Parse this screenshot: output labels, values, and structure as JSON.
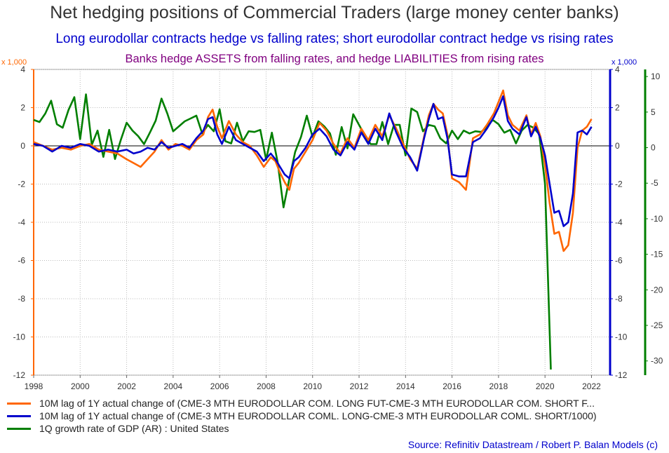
{
  "titles": {
    "main": "Net hedging positions of Commercial Traders (large money center banks)",
    "subtitle": "Long eurodollar contracts hedge vs falling rates; short eurodollar contract hedge vs rising rates",
    "subtitle2": "Banks hedge ASSETS from falling rates, and hedge LIABILITIES from rising rates"
  },
  "source": "Source: Refinitiv Datastream / Robert P. Balan Models (c)",
  "colors": {
    "orange": "#ff6600",
    "blue": "#0000cc",
    "green": "#007f00",
    "title": "#333333",
    "subtitle3": "#800080"
  },
  "chart_data": {
    "type": "line",
    "x_axis": {
      "range": [
        1998,
        2022.8
      ],
      "ticks": [
        "1998",
        "2000",
        "2002",
        "2004",
        "2006",
        "2008",
        "2010",
        "2012",
        "2014",
        "2016",
        "2018",
        "2020",
        "2022"
      ]
    },
    "y_left": {
      "unit": "x 1,000",
      "range": [
        -12,
        4
      ],
      "ticks": [
        "4",
        "2",
        "0",
        "-2",
        "-4",
        "-6",
        "-8",
        "-10",
        "-12"
      ],
      "color": "#ff6600"
    },
    "y_mid": {
      "unit": "x 1,000",
      "range": [
        -12,
        4
      ],
      "ticks": [
        "4",
        "2",
        "0",
        "-2",
        "-4",
        "-6",
        "-8",
        "-10",
        "-12"
      ],
      "color": "#0000cc"
    },
    "y_right": {
      "range": [
        -32,
        11
      ],
      "ticks": [
        "10",
        "5",
        "0",
        "-5",
        "-10",
        "-15",
        "-20",
        "-25",
        "-30"
      ],
      "color": "#007f00"
    },
    "grid": true,
    "legend_position": "bottom",
    "series": [
      {
        "name": "10M lag of 1Y actual change of (CME-3 MTH EURODOLLAR COM. LONG FUT-CME-3 MTH EURODOLLAR COM. SHORT F...",
        "axis": "left",
        "color": "#ff6600",
        "points": [
          [
            1998.0,
            0.2
          ],
          [
            1998.4,
            0.0
          ],
          [
            1998.8,
            -0.2
          ],
          [
            1999.2,
            -0.1
          ],
          [
            1999.6,
            -0.2
          ],
          [
            2000.0,
            0.0
          ],
          [
            2000.4,
            0.1
          ],
          [
            2000.8,
            -0.2
          ],
          [
            2001.2,
            -0.3
          ],
          [
            2001.6,
            -0.4
          ],
          [
            2002.0,
            -0.7
          ],
          [
            2002.3,
            -0.9
          ],
          [
            2002.6,
            -1.1
          ],
          [
            2002.9,
            -0.7
          ],
          [
            2003.2,
            -0.3
          ],
          [
            2003.5,
            0.3
          ],
          [
            2003.8,
            -0.2
          ],
          [
            2004.1,
            0.1
          ],
          [
            2004.4,
            0.0
          ],
          [
            2004.7,
            -0.2
          ],
          [
            2005.0,
            0.3
          ],
          [
            2005.3,
            0.6
          ],
          [
            2005.5,
            1.5
          ],
          [
            2005.7,
            1.9
          ],
          [
            2005.9,
            1.0
          ],
          [
            2006.1,
            0.4
          ],
          [
            2006.4,
            1.3
          ],
          [
            2006.7,
            0.6
          ],
          [
            2007.0,
            0.2
          ],
          [
            2007.3,
            0.0
          ],
          [
            2007.6,
            -0.5
          ],
          [
            2007.9,
            -1.1
          ],
          [
            2008.2,
            -0.6
          ],
          [
            2008.4,
            -0.8
          ],
          [
            2008.6,
            -1.4
          ],
          [
            2008.8,
            -1.9
          ],
          [
            2009.0,
            -2.3
          ],
          [
            2009.2,
            -1.2
          ],
          [
            2009.4,
            -0.9
          ],
          [
            2009.7,
            -0.3
          ],
          [
            2010.0,
            0.3
          ],
          [
            2010.3,
            1.2
          ],
          [
            2010.6,
            0.8
          ],
          [
            2010.9,
            0.1
          ],
          [
            2011.2,
            -0.4
          ],
          [
            2011.5,
            0.4
          ],
          [
            2011.8,
            -0.1
          ],
          [
            2012.1,
            0.9
          ],
          [
            2012.4,
            0.3
          ],
          [
            2012.7,
            1.1
          ],
          [
            2013.0,
            0.5
          ],
          [
            2013.3,
            1.6
          ],
          [
            2013.6,
            0.9
          ],
          [
            2013.9,
            0.1
          ],
          [
            2014.2,
            -0.7
          ],
          [
            2014.5,
            -1.2
          ],
          [
            2014.8,
            0.5
          ],
          [
            2015.0,
            1.6
          ],
          [
            2015.2,
            2.2
          ],
          [
            2015.4,
            1.9
          ],
          [
            2015.6,
            1.7
          ],
          [
            2015.8,
            0.6
          ],
          [
            2016.0,
            -1.7
          ],
          [
            2016.3,
            -1.9
          ],
          [
            2016.6,
            -2.3
          ],
          [
            2016.9,
            0.4
          ],
          [
            2017.2,
            0.6
          ],
          [
            2017.5,
            1.1
          ],
          [
            2017.8,
            1.7
          ],
          [
            2018.0,
            2.3
          ],
          [
            2018.2,
            2.9
          ],
          [
            2018.4,
            1.6
          ],
          [
            2018.6,
            1.1
          ],
          [
            2018.9,
            0.8
          ],
          [
            2019.2,
            1.6
          ],
          [
            2019.4,
            0.6
          ],
          [
            2019.6,
            1.2
          ],
          [
            2019.8,
            0.5
          ],
          [
            2020.0,
            -1.0
          ],
          [
            2020.2,
            -3.0
          ],
          [
            2020.4,
            -4.6
          ],
          [
            2020.6,
            -4.5
          ],
          [
            2020.8,
            -5.5
          ],
          [
            2021.0,
            -5.2
          ],
          [
            2021.2,
            -3.5
          ],
          [
            2021.4,
            -0.1
          ],
          [
            2021.6,
            0.8
          ],
          [
            2021.8,
            1.0
          ],
          [
            2022.0,
            1.4
          ]
        ]
      },
      {
        "name": "10M lag of 1Y actual change of (CME-3 MTH EURODOLLAR COML. LONG-CME-3 MTH EURODOLLAR COML. SHORT/1000)",
        "axis": "mid",
        "color": "#0000cc",
        "points": [
          [
            1998.0,
            0.1
          ],
          [
            1998.4,
            0.0
          ],
          [
            1998.8,
            -0.3
          ],
          [
            1999.2,
            0.0
          ],
          [
            1999.6,
            -0.1
          ],
          [
            2000.0,
            0.1
          ],
          [
            2000.4,
            0.0
          ],
          [
            2000.8,
            -0.3
          ],
          [
            2001.2,
            -0.2
          ],
          [
            2001.6,
            -0.3
          ],
          [
            2002.0,
            -0.2
          ],
          [
            2002.3,
            -0.4
          ],
          [
            2002.6,
            -0.3
          ],
          [
            2002.9,
            -0.1
          ],
          [
            2003.2,
            -0.2
          ],
          [
            2003.5,
            0.2
          ],
          [
            2003.8,
            -0.1
          ],
          [
            2004.1,
            0.0
          ],
          [
            2004.4,
            0.1
          ],
          [
            2004.7,
            -0.1
          ],
          [
            2005.0,
            0.4
          ],
          [
            2005.3,
            0.8
          ],
          [
            2005.5,
            1.4
          ],
          [
            2005.7,
            1.5
          ],
          [
            2005.9,
            0.6
          ],
          [
            2006.1,
            0.1
          ],
          [
            2006.4,
            1.0
          ],
          [
            2006.7,
            0.3
          ],
          [
            2007.0,
            0.1
          ],
          [
            2007.3,
            -0.1
          ],
          [
            2007.6,
            -0.3
          ],
          [
            2007.9,
            -0.8
          ],
          [
            2008.2,
            -0.4
          ],
          [
            2008.4,
            -0.7
          ],
          [
            2008.6,
            -1.1
          ],
          [
            2008.8,
            -1.5
          ],
          [
            2009.0,
            -1.7
          ],
          [
            2009.2,
            -0.8
          ],
          [
            2009.4,
            -0.6
          ],
          [
            2009.7,
            -0.1
          ],
          [
            2010.0,
            0.6
          ],
          [
            2010.3,
            0.9
          ],
          [
            2010.6,
            0.5
          ],
          [
            2010.9,
            -0.2
          ],
          [
            2011.2,
            -0.5
          ],
          [
            2011.5,
            0.2
          ],
          [
            2011.8,
            -0.2
          ],
          [
            2012.1,
            0.7
          ],
          [
            2012.4,
            0.1
          ],
          [
            2012.7,
            0.9
          ],
          [
            2013.0,
            0.3
          ],
          [
            2013.3,
            1.7
          ],
          [
            2013.6,
            0.7
          ],
          [
            2013.9,
            -0.1
          ],
          [
            2014.2,
            -0.6
          ],
          [
            2014.5,
            -1.3
          ],
          [
            2014.8,
            0.4
          ],
          [
            2015.0,
            1.4
          ],
          [
            2015.2,
            2.2
          ],
          [
            2015.4,
            1.4
          ],
          [
            2015.6,
            1.5
          ],
          [
            2015.8,
            0.4
          ],
          [
            2016.0,
            -1.5
          ],
          [
            2016.3,
            -1.6
          ],
          [
            2016.6,
            -1.6
          ],
          [
            2016.9,
            0.2
          ],
          [
            2017.2,
            0.4
          ],
          [
            2017.5,
            0.9
          ],
          [
            2017.8,
            1.5
          ],
          [
            2018.0,
            2.0
          ],
          [
            2018.2,
            2.6
          ],
          [
            2018.4,
            1.3
          ],
          [
            2018.6,
            0.9
          ],
          [
            2018.9,
            0.6
          ],
          [
            2019.2,
            1.5
          ],
          [
            2019.4,
            0.5
          ],
          [
            2019.6,
            1.0
          ],
          [
            2019.8,
            0.4
          ],
          [
            2020.0,
            -0.5
          ],
          [
            2020.2,
            -2.0
          ],
          [
            2020.4,
            -3.5
          ],
          [
            2020.6,
            -3.4
          ],
          [
            2020.8,
            -4.2
          ],
          [
            2021.0,
            -4.0
          ],
          [
            2021.2,
            -2.5
          ],
          [
            2021.4,
            0.7
          ],
          [
            2021.6,
            0.8
          ],
          [
            2021.8,
            0.6
          ],
          [
            2022.0,
            1.0
          ]
        ]
      },
      {
        "name": "1Q growth rate of GDP (AR) : United States",
        "axis": "right",
        "color": "#007f00",
        "points": [
          [
            1998.0,
            3.9
          ],
          [
            1998.25,
            3.6
          ],
          [
            1998.5,
            4.8
          ],
          [
            1998.75,
            6.6
          ],
          [
            1999.0,
            3.3
          ],
          [
            1999.25,
            2.8
          ],
          [
            1999.5,
            5.3
          ],
          [
            1999.75,
            7.1
          ],
          [
            2000.0,
            1.2
          ],
          [
            2000.25,
            7.5
          ],
          [
            2000.5,
            0.4
          ],
          [
            2000.75,
            2.4
          ],
          [
            2001.0,
            -1.3
          ],
          [
            2001.25,
            2.5
          ],
          [
            2001.5,
            -1.6
          ],
          [
            2001.75,
            1.1
          ],
          [
            2002.0,
            3.5
          ],
          [
            2002.25,
            2.4
          ],
          [
            2002.5,
            1.6
          ],
          [
            2002.75,
            0.5
          ],
          [
            2003.0,
            2.1
          ],
          [
            2003.25,
            3.8
          ],
          [
            2003.5,
            6.9
          ],
          [
            2003.75,
            4.8
          ],
          [
            2004.0,
            2.3
          ],
          [
            2004.25,
            3.0
          ],
          [
            2004.5,
            3.7
          ],
          [
            2004.75,
            4.1
          ],
          [
            2005.0,
            4.5
          ],
          [
            2005.25,
            2.0
          ],
          [
            2005.5,
            3.2
          ],
          [
            2005.75,
            2.3
          ],
          [
            2006.0,
            5.4
          ],
          [
            2006.25,
            0.9
          ],
          [
            2006.5,
            0.6
          ],
          [
            2006.75,
            3.5
          ],
          [
            2007.0,
            0.9
          ],
          [
            2007.25,
            2.3
          ],
          [
            2007.5,
            2.2
          ],
          [
            2007.75,
            2.5
          ],
          [
            2008.0,
            -1.7
          ],
          [
            2008.25,
            2.1
          ],
          [
            2008.5,
            -2.1
          ],
          [
            2008.75,
            -8.4
          ],
          [
            2009.0,
            -4.4
          ],
          [
            2009.25,
            -0.6
          ],
          [
            2009.5,
            1.5
          ],
          [
            2009.75,
            4.5
          ],
          [
            2010.0,
            1.5
          ],
          [
            2010.25,
            3.7
          ],
          [
            2010.5,
            3.0
          ],
          [
            2010.75,
            2.0
          ],
          [
            2011.0,
            -1.0
          ],
          [
            2011.25,
            2.9
          ],
          [
            2011.5,
            -0.1
          ],
          [
            2011.75,
            4.7
          ],
          [
            2012.0,
            3.2
          ],
          [
            2012.25,
            1.7
          ],
          [
            2012.5,
            0.5
          ],
          [
            2012.75,
            0.5
          ],
          [
            2013.0,
            3.6
          ],
          [
            2013.25,
            0.5
          ],
          [
            2013.5,
            3.2
          ],
          [
            2013.75,
            3.2
          ],
          [
            2014.0,
            -1.1
          ],
          [
            2014.25,
            5.5
          ],
          [
            2014.5,
            5.0
          ],
          [
            2014.75,
            2.3
          ],
          [
            2015.0,
            3.2
          ],
          [
            2015.25,
            3.0
          ],
          [
            2015.5,
            1.3
          ],
          [
            2015.75,
            0.6
          ],
          [
            2016.0,
            2.4
          ],
          [
            2016.25,
            1.2
          ],
          [
            2016.5,
            2.4
          ],
          [
            2016.75,
            2.0
          ],
          [
            2017.0,
            2.3
          ],
          [
            2017.25,
            2.2
          ],
          [
            2017.5,
            2.9
          ],
          [
            2017.75,
            3.9
          ],
          [
            2018.0,
            3.3
          ],
          [
            2018.25,
            2.1
          ],
          [
            2018.5,
            2.5
          ],
          [
            2018.75,
            0.6
          ],
          [
            2019.0,
            2.4
          ],
          [
            2019.25,
            3.2
          ],
          [
            2019.5,
            2.8
          ],
          [
            2019.75,
            1.9
          ],
          [
            2020.0,
            -5.1
          ],
          [
            2020.25,
            -31.2
          ]
        ]
      }
    ]
  }
}
